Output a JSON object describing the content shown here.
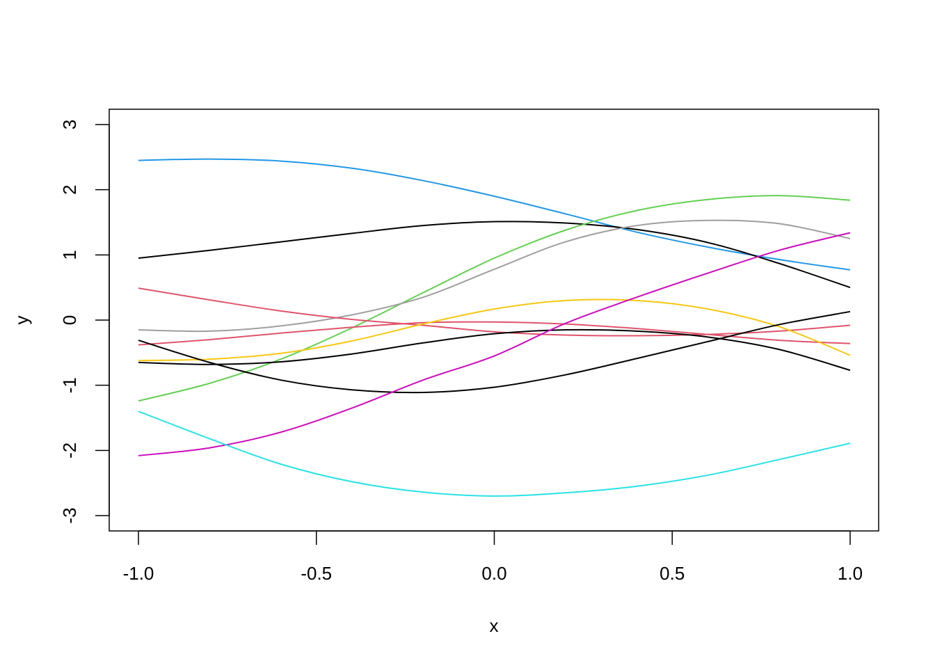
{
  "chart_data": {
    "type": "line",
    "title": "",
    "xlabel": "x",
    "ylabel": "y",
    "xlim": [
      -1.0,
      1.0
    ],
    "ylim": [
      -3,
      3
    ],
    "x_ticks": [
      -1.0,
      -0.5,
      0.0,
      0.5,
      1.0
    ],
    "x_tick_labels": [
      "-1.0",
      "-0.5",
      "0.0",
      "0.5",
      "1.0"
    ],
    "y_ticks": [
      -3,
      -2,
      -1,
      0,
      1,
      2,
      3
    ],
    "y_tick_labels": [
      "-3",
      "-2",
      "-1",
      "0",
      "1",
      "2",
      "3"
    ],
    "grid": false,
    "legend": "none",
    "x": [
      -1.0,
      -0.8,
      -0.6,
      -0.4,
      -0.2,
      0.0,
      0.2,
      0.4,
      0.6,
      0.8,
      1.0
    ],
    "series": [
      {
        "color": "#2297E6",
        "values": [
          2.45,
          2.47,
          2.44,
          2.33,
          2.14,
          1.9,
          1.63,
          1.35,
          1.12,
          0.93,
          0.77
        ]
      },
      {
        "color": "#000000",
        "values": [
          0.95,
          1.07,
          1.2,
          1.33,
          1.45,
          1.51,
          1.49,
          1.39,
          1.19,
          0.87,
          0.5
        ]
      },
      {
        "color": "#61D04F",
        "values": [
          -1.24,
          -0.97,
          -0.6,
          -0.12,
          0.42,
          0.95,
          1.38,
          1.68,
          1.85,
          1.91,
          1.84
        ]
      },
      {
        "color": "#9E9E9E",
        "values": [
          -0.15,
          -0.17,
          -0.09,
          0.08,
          0.35,
          0.78,
          1.2,
          1.45,
          1.53,
          1.48,
          1.25
        ]
      },
      {
        "color": "#DF536B",
        "values": [
          0.49,
          0.31,
          0.14,
          0.01,
          -0.08,
          -0.18,
          -0.23,
          -0.24,
          -0.22,
          -0.17,
          -0.08
        ]
      },
      {
        "color": "#DF536B",
        "values": [
          -0.38,
          -0.3,
          -0.2,
          -0.11,
          -0.04,
          -0.03,
          -0.06,
          -0.13,
          -0.22,
          -0.31,
          -0.36
        ]
      },
      {
        "color": "#F5C710",
        "values": [
          -0.62,
          -0.6,
          -0.51,
          -0.32,
          -0.06,
          0.17,
          0.3,
          0.3,
          0.17,
          -0.1,
          -0.54
        ]
      },
      {
        "color": "#000000",
        "values": [
          -0.65,
          -0.68,
          -0.64,
          -0.52,
          -0.35,
          -0.21,
          -0.15,
          -0.17,
          -0.26,
          -0.45,
          -0.77
        ]
      },
      {
        "color": "#000000",
        "values": [
          -0.31,
          -0.65,
          -0.92,
          -1.07,
          -1.11,
          -1.03,
          -0.84,
          -0.59,
          -0.33,
          -0.07,
          0.13
        ]
      },
      {
        "color": "#CD0BBC",
        "values": [
          -2.08,
          -1.96,
          -1.72,
          -1.35,
          -0.92,
          -0.55,
          -0.05,
          0.35,
          0.72,
          1.07,
          1.34
        ]
      },
      {
        "color": "#28E2E5",
        "values": [
          -1.4,
          -1.82,
          -2.21,
          -2.48,
          -2.64,
          -2.7,
          -2.65,
          -2.55,
          -2.38,
          -2.14,
          -1.89
        ]
      }
    ]
  }
}
